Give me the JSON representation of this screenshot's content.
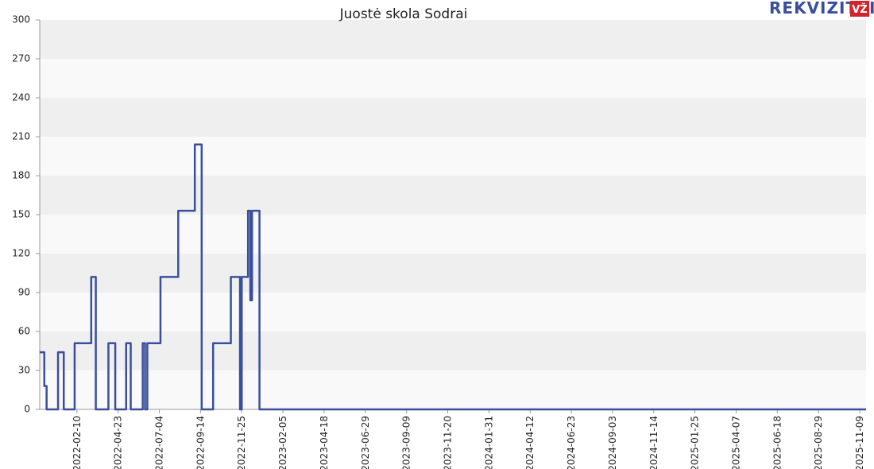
{
  "chart_data": {
    "type": "line",
    "title": "Juostė skola Sodrai",
    "logo": "REKVIZITAI",
    "logo_badge": "VŽ",
    "x": [
      "2021-12-07",
      "2021-12-15",
      "2021-12-19",
      "2022-01-08",
      "2022-01-18",
      "2022-02-06",
      "2022-03-07",
      "2022-03-15",
      "2022-04-06",
      "2022-04-18",
      "2022-05-07",
      "2022-05-15",
      "2022-06-05",
      "2022-06-09",
      "2022-06-13",
      "2022-07-06",
      "2022-08-06",
      "2022-09-04",
      "2022-09-16",
      "2022-10-06",
      "2022-11-06",
      "2022-11-22",
      "2022-11-25",
      "2022-12-06",
      "2022-12-10",
      "2022-12-13",
      "2022-12-26",
      "2025-11-20"
    ],
    "series": [
      {
        "name": "Juostė skola Sodrai",
        "color": "#3a4f9c",
        "values": [
          44,
          18,
          0,
          44,
          0,
          51,
          102,
          0,
          51,
          0,
          51,
          0,
          51,
          0,
          51,
          102,
          153,
          204,
          0,
          51,
          102,
          0,
          102,
          153,
          84,
          153,
          0,
          0
        ]
      }
    ],
    "xlim": [
      "2021-12-07",
      "2025-11-20"
    ],
    "xticks": [
      "2022-02-10",
      "2022-04-23",
      "2022-07-04",
      "2022-09-14",
      "2022-11-25",
      "2023-02-05",
      "2023-04-18",
      "2023-06-29",
      "2023-09-09",
      "2023-11-20",
      "2024-01-31",
      "2024-04-12",
      "2024-06-23",
      "2024-09-03",
      "2024-11-14",
      "2025-01-25",
      "2025-04-07",
      "2025-06-18",
      "2025-08-29",
      "2025-11-09"
    ],
    "ylim": [
      0,
      300
    ],
    "yticks": [
      0,
      30,
      60,
      90,
      120,
      150,
      180,
      210,
      240,
      270,
      300
    ],
    "grid": "bands",
    "step": true
  }
}
